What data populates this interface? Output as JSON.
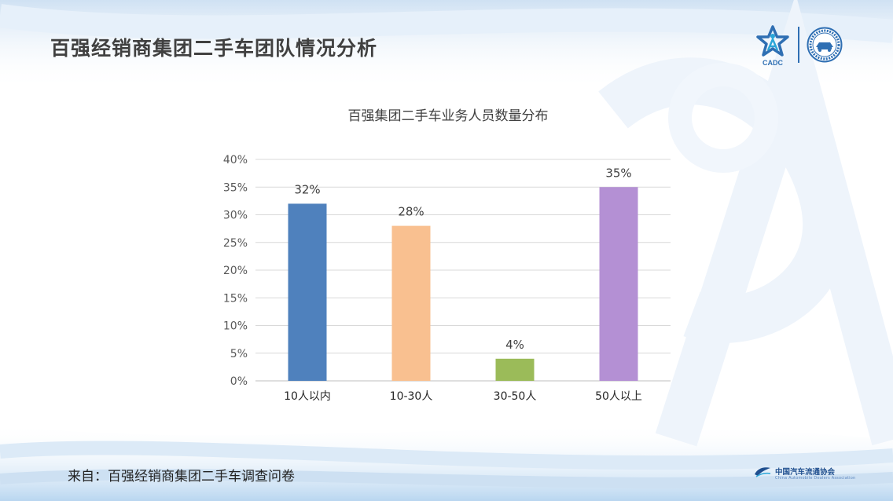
{
  "page": {
    "title": "百强经销商集团二手车团队情况分析",
    "source": "来自：百强经销商集团二手车调查问卷",
    "footer_org": "中国汽车流通协会",
    "footer_org_en": "China Automobile Dealers Association",
    "logo_cadc_text": "CADC"
  },
  "colors": {
    "accent": "#2f6fb3"
  },
  "chart_data": {
    "type": "bar",
    "title": "百强集团二手车业务人员数量分布",
    "categories": [
      "10人以内",
      "10-30人",
      "30-50人",
      "50人以上"
    ],
    "values": [
      32,
      28,
      4,
      35
    ],
    "value_labels": [
      "32%",
      "28%",
      "4%",
      "35%"
    ],
    "colors": [
      "#4f81bd",
      "#f9c090",
      "#9bbb59",
      "#b490d4"
    ],
    "ylim": [
      0,
      40
    ],
    "y_ticks": [
      "0%",
      "5%",
      "10%",
      "15%",
      "20%",
      "25%",
      "30%",
      "35%",
      "40%"
    ],
    "grid": true,
    "legend": "none"
  }
}
